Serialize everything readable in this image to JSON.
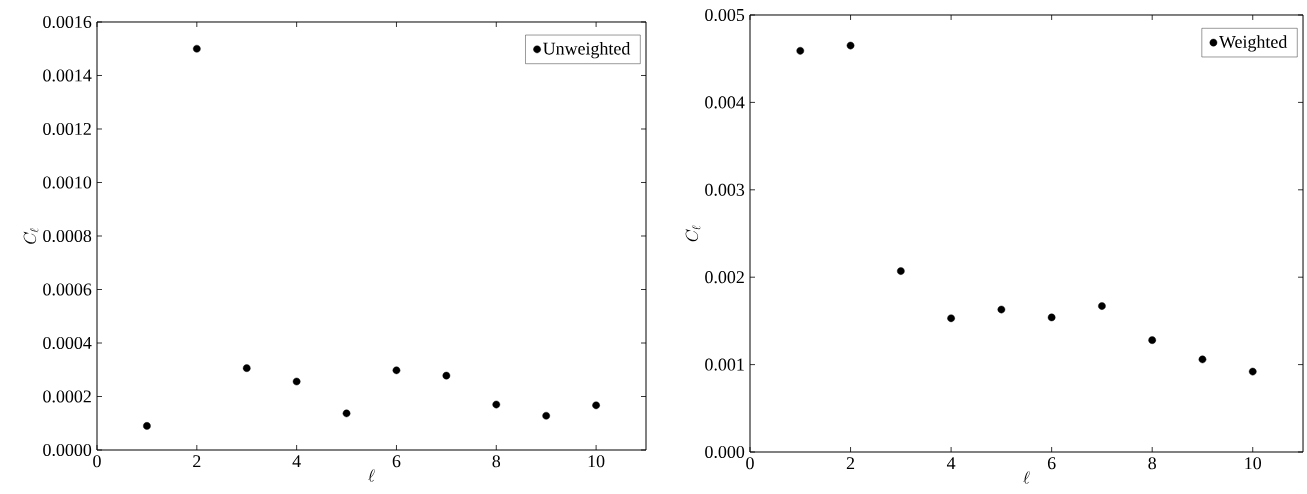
{
  "chart_data": [
    {
      "type": "scatter",
      "xlabel": "\\ell",
      "ylabel": "C_\\ell",
      "x": [
        1,
        2,
        3,
        4,
        5,
        6,
        7,
        8,
        9,
        10
      ],
      "series": [
        {
          "name": "Unweighted",
          "color": "#000000",
          "values": [
            9e-05,
            0.0015,
            0.000306,
            0.000256,
            0.000137,
            0.000298,
            0.000278,
            0.00017,
            0.000128,
            0.000167
          ]
        }
      ],
      "xlim": [
        0,
        11
      ],
      "xticks": [
        0,
        2,
        4,
        6,
        8,
        10
      ],
      "ylim": [
        0,
        0.0016
      ],
      "yticks": [
        {
          "value": 0,
          "label": "0.0000"
        },
        {
          "value": 0.0002,
          "label": "0.0002"
        },
        {
          "value": 0.0004,
          "label": "0.0004"
        },
        {
          "value": 0.0006,
          "label": "0.0006"
        },
        {
          "value": 0.0008,
          "label": "0.0008"
        },
        {
          "value": 0.001,
          "label": "0.0010"
        },
        {
          "value": 0.0012,
          "label": "0.0012"
        },
        {
          "value": 0.0014,
          "label": "0.0014"
        },
        {
          "value": 0.0016,
          "label": "0.0016"
        }
      ],
      "marker": "circle",
      "legend": "top right"
    },
    {
      "type": "scatter",
      "xlabel": "\\ell",
      "ylabel": "C_\\ell",
      "x": [
        1,
        2,
        3,
        4,
        5,
        6,
        7,
        8,
        9,
        10
      ],
      "series": [
        {
          "name": "Weighted",
          "color": "#000000",
          "values": [
            0.00459,
            0.00465,
            0.00207,
            0.00153,
            0.00163,
            0.00154,
            0.00167,
            0.00128,
            0.00106,
            0.00092
          ]
        }
      ],
      "xlim": [
        0,
        11
      ],
      "xticks": [
        0,
        2,
        4,
        6,
        8,
        10
      ],
      "ylim": [
        0,
        0.005
      ],
      "yticks": [
        {
          "value": 0,
          "label": "0.000"
        },
        {
          "value": 0.001,
          "label": "0.001"
        },
        {
          "value": 0.002,
          "label": "0.002"
        },
        {
          "value": 0.003,
          "label": "0.003"
        },
        {
          "value": 0.004,
          "label": "0.004"
        },
        {
          "value": 0.005,
          "label": "0.005"
        }
      ],
      "marker": "circle",
      "legend": "top right"
    }
  ]
}
